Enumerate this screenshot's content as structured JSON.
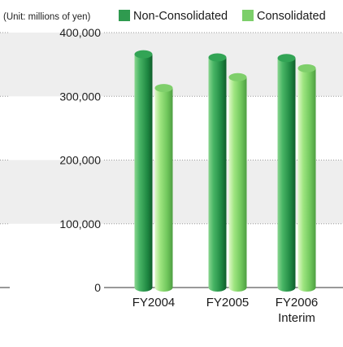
{
  "chart_data": {
    "type": "bar",
    "title": "",
    "unit_label": "(Unit: millions of yen)",
    "categories": [
      [
        "FY2004"
      ],
      [
        "FY2005"
      ],
      [
        "FY2006",
        "Interim"
      ]
    ],
    "series": [
      {
        "name": "Non-Consolidated",
        "values": [
          366000,
          361000,
          360000
        ],
        "color": "#2f9a4f"
      },
      {
        "name": "Consolidated",
        "values": [
          313000,
          330000,
          344000
        ],
        "color": "#7ccf6a"
      }
    ],
    "ylim": [
      0,
      400000
    ],
    "yticks": [
      0,
      100000,
      200000,
      300000,
      400000
    ],
    "ytick_labels": [
      "0",
      "100,000",
      "200,000",
      "300,000",
      "400,000"
    ],
    "grid": "alternating gray bands with dotted horizontal lines",
    "legend": "top"
  }
}
